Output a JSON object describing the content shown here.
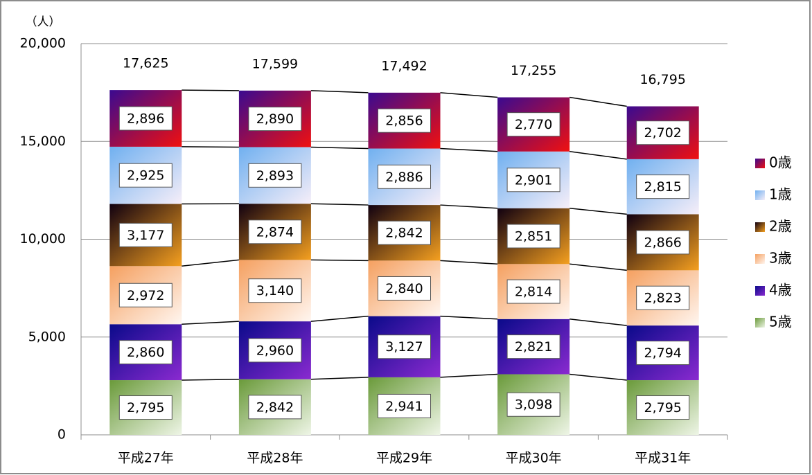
{
  "chart_data": {
    "type": "stacked_bar",
    "y_axis_label": "（人）",
    "categories": [
      "平成27年",
      "平成28年",
      "平成29年",
      "平成30年",
      "平成31年"
    ],
    "series": [
      {
        "name": "5歳",
        "color": "#6a9a3a",
        "color2": "#eef5e6",
        "values": [
          2795,
          2842,
          2941,
          3098,
          2795
        ],
        "value_labels": [
          "2,795",
          "2,842",
          "2,941",
          "3,098",
          "2,795"
        ]
      },
      {
        "name": "4歳",
        "color": "#0a0a8a",
        "color2": "#8a2ad0",
        "values": [
          2860,
          2960,
          3127,
          2821,
          2794
        ],
        "value_labels": [
          "2,860",
          "2,960",
          "3,127",
          "2,821",
          "2,794"
        ]
      },
      {
        "name": "3歳",
        "color": "#f5a060",
        "color2": "#fff6f0",
        "values": [
          2972,
          3140,
          2840,
          2814,
          2823
        ],
        "value_labels": [
          "2,972",
          "3,140",
          "2,840",
          "2,814",
          "2,823"
        ]
      },
      {
        "name": "2歳",
        "color": "#100010",
        "color2": "#f5a020",
        "values": [
          3177,
          2874,
          2842,
          2851,
          2866
        ],
        "value_labels": [
          "3,177",
          "2,874",
          "2,842",
          "2,851",
          "2,866"
        ]
      },
      {
        "name": "1歳",
        "color": "#70b0f0",
        "color2": "#f6eef8",
        "values": [
          2925,
          2893,
          2886,
          2901,
          2815
        ],
        "value_labels": [
          "2,925",
          "2,893",
          "2,886",
          "2,901",
          "2,815"
        ]
      },
      {
        "name": "0歳",
        "color": "#3a0a90",
        "color2": "#f01010",
        "values": [
          2896,
          2890,
          2856,
          2770,
          2702
        ],
        "value_labels": [
          "2,896",
          "2,890",
          "2,856",
          "2,770",
          "2,702"
        ]
      }
    ],
    "totals": [
      17625,
      17599,
      17492,
      17255,
      16795
    ],
    "total_labels": [
      "17,625",
      "17,599",
      "17,492",
      "17,255",
      "16,795"
    ],
    "ylim": [
      0,
      20000
    ],
    "yticks": [
      0,
      {
        "value": 5000,
        "label": "5,000"
      },
      {
        "value": 10000,
        "label": "10,000"
      },
      {
        "value": 15000,
        "label": "15,000"
      },
      {
        "value": 20000,
        "label": "20,000"
      }
    ],
    "grid": true,
    "legend": "right"
  }
}
